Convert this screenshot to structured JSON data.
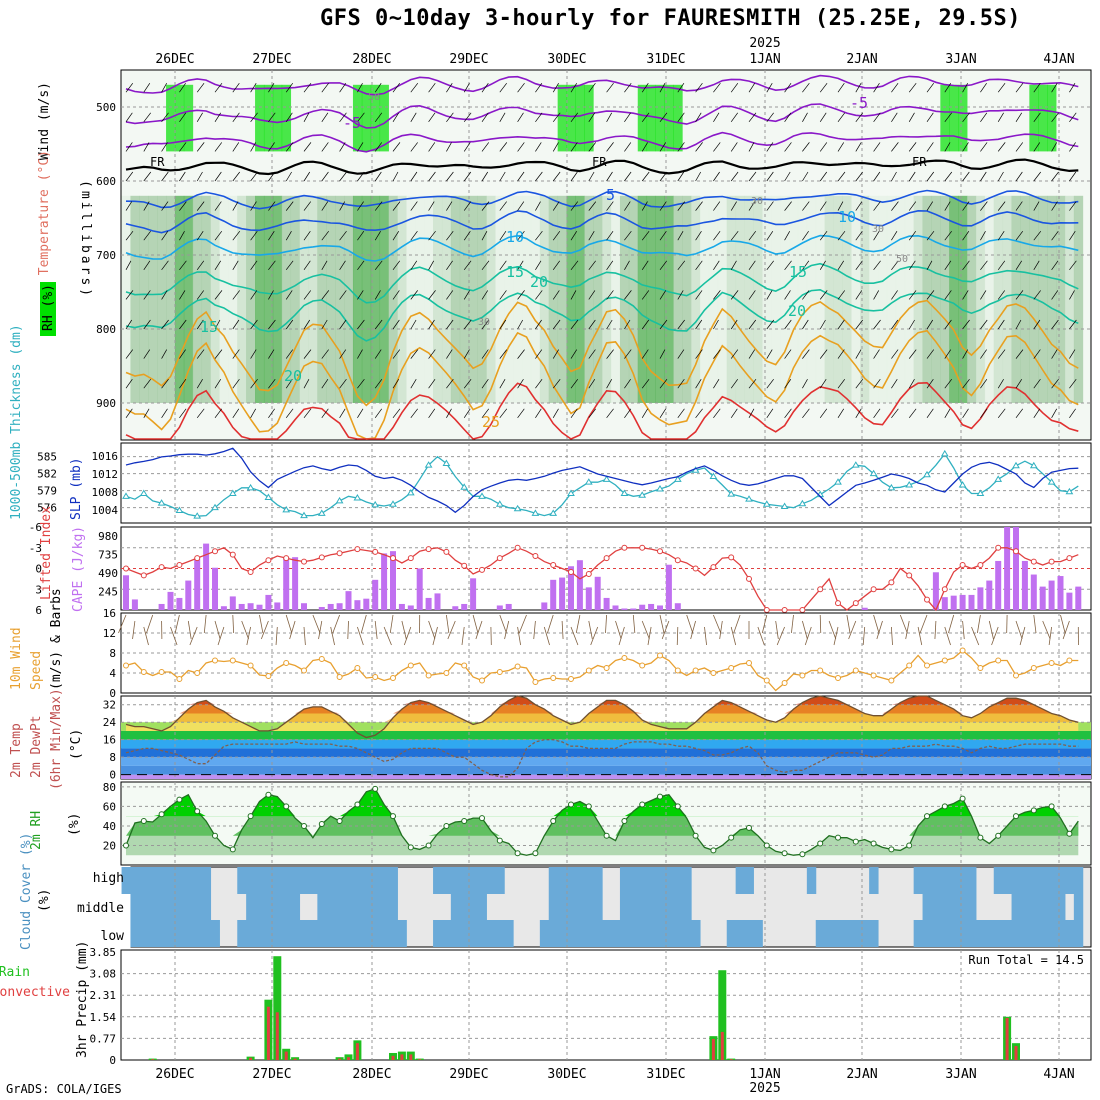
{
  "title": "GFS 0~10day 3-hourly for FAURESMITH (25.25E, 29.5S)",
  "footer": "GrADS: COLA/IGES",
  "colors": {
    "rh_light": "#e6f2e6",
    "rh_mid": "#a0c8a0",
    "rh_dark": "#4fae4f",
    "rh_bright": "#00e000",
    "temp_purple": "#8a18c8",
    "temp_blue": "#1a55e0",
    "temp_lightblue": "#18a8e8",
    "temp_teal": "#18c0a0",
    "temp_orange": "#e8a020",
    "temp_red": "#e03030",
    "thickness": "#30b0c0",
    "slp": "#1030c0",
    "lifted": "#e04040",
    "cape": "#c070f0",
    "wind": "#e8a030",
    "barb": "#806040",
    "rain_total": "#20c020",
    "rain_conv": "#e04040",
    "cloud": "#6aaad8",
    "cloud_gap": "#e8e8e8"
  },
  "chart_data": {
    "type": "meteogram",
    "dates_top": [
      "26DEC",
      "27DEC",
      "28DEC",
      "29DEC",
      "30DEC",
      "31DEC",
      "1JAN",
      "2JAN",
      "3JAN",
      "4JAN"
    ],
    "year_label": "2025",
    "dates_bottom": [
      "26DEC",
      "27DEC",
      "28DEC",
      "29DEC",
      "30DEC",
      "31DEC",
      "1JAN",
      "2JAN",
      "3JAN",
      "4JAN"
    ],
    "upper_air": {
      "ylabel": "(millibars)",
      "legend": [
        "Wind (m/s)",
        "Temperature (°C)",
        "RH (%)"
      ],
      "yticks": [
        "500",
        "600",
        "700",
        "800",
        "900"
      ],
      "ylim": [
        950,
        450
      ],
      "isotherm_labels": [
        "-5",
        "-5",
        "FR",
        "FR",
        "FR",
        "5",
        "10",
        "10",
        "15",
        "15",
        "20",
        "20",
        "25",
        "15",
        "20"
      ],
      "rh_labels": [
        "50",
        "30",
        "30",
        "50",
        "30"
      ]
    },
    "pressure_thickness": {
      "thickness_label": "1000-500mb Thickness (dm)",
      "thickness_ticks": [
        "585",
        "582",
        "579",
        "576"
      ],
      "slp_label": "SLP (mb)",
      "slp_ticks": [
        "1016",
        "1012",
        "1008",
        "1004"
      ],
      "thickness": [
        578.0,
        577.5,
        578.5,
        577.2,
        576.8,
        576.2,
        575.5,
        574.8,
        574.5,
        574.6,
        576.0,
        577.4,
        578.5,
        579.5,
        579.5,
        579.0,
        577.8,
        576.5,
        575.6,
        575.3,
        574.6,
        574.6,
        575.0,
        576.0,
        577.2,
        578.0,
        577.7,
        577.0,
        576.5,
        576.3,
        576.6,
        577.4,
        578.6,
        581.0,
        583.5,
        585.0,
        583.8,
        581.5,
        579.6,
        578.0,
        578.0,
        577.5,
        576.6,
        576.0,
        575.8,
        575.5,
        575.0,
        574.6,
        575.0,
        576.5,
        578.5,
        579.5,
        580.5,
        580.5,
        581.0,
        580.0,
        578.5,
        578.0,
        578.2,
        578.8,
        579.3,
        579.8,
        581.0,
        582.0,
        582.6,
        583.0,
        581.5,
        580.0,
        578.4,
        578.0,
        577.5,
        577.0,
        576.6,
        576.4,
        576.2,
        576.0,
        576.7,
        577.3,
        578.3,
        579.3,
        580.5,
        582.4,
        583.5,
        583.3,
        582.0,
        580.5,
        579.5,
        579.6,
        580.0,
        580.6,
        581.8,
        583.5,
        585.5,
        583.0,
        580.0,
        578.5,
        578.5,
        579.5,
        581.0,
        582.0,
        583.4,
        584.2,
        583.4,
        582.0,
        580.5,
        579.0,
        578.8,
        579.8
      ],
      "slp": [
        1014.0,
        1014.5,
        1014.8,
        1015.2,
        1015.8,
        1016.0,
        1016.3,
        1016.4,
        1016.4,
        1016.2,
        1016.5,
        1017.0,
        1017.7,
        1015.5,
        1012.5,
        1010.5,
        1009.0,
        1010.8,
        1011.7,
        1012.6,
        1013.4,
        1013.8,
        1013.2,
        1012.8,
        1013.5,
        1014.0,
        1013.8,
        1012.8,
        1011.5,
        1011.0,
        1011.3,
        1010.6,
        1009.5,
        1008.0,
        1006.8,
        1006.0,
        1005.0,
        1003.5,
        1005.0,
        1007.0,
        1008.5,
        1009.3,
        1010.0,
        1010.6,
        1010.8,
        1010.6,
        1011.0,
        1011.5,
        1012.2,
        1012.8,
        1013.2,
        1013.6,
        1012.8,
        1012.0,
        1011.5,
        1011.0,
        1010.5,
        1010.0,
        1009.6,
        1010.0,
        1010.5,
        1011.0,
        1011.4,
        1012.4,
        1013.2,
        1013.8,
        1012.8,
        1011.6,
        1010.6,
        1009.8,
        1009.5,
        1009.8,
        1010.4,
        1011.0,
        1011.6,
        1011.6,
        1011.0,
        1009.0,
        1007.0,
        1005.0,
        1006.5,
        1008.0,
        1009.5,
        1010.0,
        1010.6,
        1011.3,
        1012.0,
        1011.6,
        1011.0,
        1010.0,
        1009.5,
        1008.5,
        1008.0,
        1010.0,
        1012.0,
        1013.5,
        1014.3,
        1014.6,
        1014.0,
        1013.0,
        1012.0,
        1010.0,
        1009.0,
        1011.0,
        1012.4,
        1012.8,
        1013.2,
        1013.3
      ]
    },
    "lifted_cape": {
      "lifted_label": "Lifted Index",
      "lifted_ticks": [
        "-6",
        "-3",
        "0",
        "3",
        "6"
      ],
      "cape_label": "CAPE (J/kg)",
      "cape_ticks": [
        "980",
        "735",
        "490",
        "245"
      ],
      "lifted_index": [
        0.0,
        0.5,
        1.0,
        0.5,
        -0.2,
        0.0,
        -0.5,
        -1.0,
        -1.5,
        -2.0,
        -2.5,
        -3.0,
        -2.0,
        0.0,
        0.5,
        -0.5,
        -1.2,
        -1.8,
        -1.5,
        -1.2,
        -1.0,
        -1.2,
        -1.6,
        -2.0,
        -2.2,
        -2.5,
        -2.8,
        -2.6,
        -2.4,
        -2.0,
        -1.5,
        -0.8,
        -1.5,
        -2.5,
        -2.8,
        -3.0,
        -2.4,
        -1.2,
        -0.4,
        0.8,
        0.2,
        -0.5,
        -1.5,
        -2.2,
        -3.0,
        -2.5,
        -1.8,
        -1.0,
        -0.5,
        0.0,
        0.5,
        1.5,
        0.8,
        -0.5,
        -1.5,
        -2.5,
        -3.0,
        -3.0,
        -3.0,
        -2.8,
        -2.5,
        -2.0,
        -1.2,
        -0.8,
        0.0,
        1.0,
        -0.2,
        -1.5,
        -1.6,
        -0.5,
        1.5,
        4.0,
        6.0,
        6.0,
        6.0,
        6.0,
        6.0,
        4.5,
        3.0,
        1.5,
        5.0,
        6.0,
        5.0,
        4.0,
        3.0,
        3.0,
        2.0,
        0.0,
        1.0,
        2.5,
        4.5,
        6.0,
        3.0,
        0.5,
        -0.5,
        0.0,
        -0.5,
        -1.5,
        -3.0,
        -3.0,
        -2.5,
        -1.5,
        -1.0,
        -0.5,
        -1.0,
        -1.0,
        -1.5,
        -2.0
      ],
      "cape": [
        460,
        140,
        0,
        0,
        80,
        240,
        160,
        390,
        680,
        880,
        560,
        50,
        180,
        80,
        90,
        70,
        200,
        100,
        700,
        700,
        90,
        0,
        40,
        80,
        90,
        250,
        130,
        150,
        400,
        750,
        780,
        80,
        60,
        550,
        160,
        220,
        0,
        50,
        80,
        420,
        0,
        0,
        60,
        80,
        0,
        0,
        0,
        100,
        400,
        430,
        580,
        660,
        300,
        440,
        160,
        60,
        20,
        20,
        70,
        80,
        60,
        600,
        90,
        0,
        0,
        0,
        0,
        0,
        0,
        0,
        0,
        0,
        0,
        0,
        0,
        0,
        0,
        0,
        0,
        0,
        0,
        0,
        0,
        30,
        0,
        0,
        0,
        0,
        0,
        0,
        0,
        500,
        170,
        190,
        200,
        200,
        300,
        390,
        650,
        1100,
        1100,
        650,
        470,
        310,
        390,
        450,
        230,
        310
      ]
    },
    "wind": {
      "ylabel": "10m Wind Speed (m/s) & Barbs",
      "yticks": [
        "16",
        "12",
        "8",
        "4",
        "0"
      ],
      "speed": [
        5.5,
        6.0,
        4.2,
        3.5,
        4.2,
        4.2,
        2.8,
        4.5,
        4.0,
        6.0,
        6.5,
        6.3,
        6.5,
        6.0,
        5.5,
        3.6,
        3.4,
        5.0,
        6.0,
        5.5,
        4.5,
        6.5,
        6.8,
        6.0,
        3.2,
        3.8,
        5.0,
        3.0,
        3.2,
        2.5,
        3.0,
        4.5,
        5.5,
        6.0,
        3.5,
        3.8,
        4.0,
        6.0,
        5.5,
        3.2,
        2.5,
        4.0,
        4.2,
        4.5,
        5.3,
        5.0,
        2.2,
        2.8,
        3.0,
        2.8,
        2.8,
        3.2,
        4.5,
        5.5,
        5.0,
        6.5,
        7.0,
        6.5,
        5.5,
        6.0,
        7.5,
        6.5,
        4.5,
        3.5,
        4.5,
        5.0,
        4.0,
        4.5,
        5.0,
        5.8,
        6.0,
        3.5,
        2.5,
        0.5,
        2.0,
        3.8,
        3.5,
        4.5,
        4.5,
        3.5,
        3.0,
        3.5,
        4.5,
        4.0,
        3.5,
        3.0,
        2.5,
        4.0,
        5.5,
        7.5,
        5.5,
        6.0,
        6.5,
        7.0,
        8.5,
        7.0,
        5.0,
        6.0,
        6.5,
        6.5,
        3.5,
        4.0,
        5.0,
        5.5,
        6.0,
        5.5,
        6.5,
        6.5
      ]
    },
    "temperature": {
      "ylabel": "2m Temp 2m DewPt (6hr Min/Max) (°C)",
      "yticks": [
        "32",
        "24",
        "16",
        "8",
        "0"
      ],
      "temp": [
        23,
        22,
        22,
        21,
        20,
        22,
        26,
        30,
        33,
        34,
        31,
        29,
        26,
        24,
        22,
        20,
        20,
        21,
        24,
        27,
        30,
        31,
        31,
        29,
        27,
        23,
        19,
        17,
        18,
        21,
        26,
        30,
        33,
        34,
        33,
        31,
        29,
        27,
        25,
        23,
        24,
        27,
        31,
        34,
        36,
        35,
        32,
        30,
        27,
        25,
        23,
        24,
        28,
        31,
        34,
        34,
        32,
        29,
        25,
        23,
        22,
        21,
        21,
        21,
        24,
        28,
        31,
        34,
        33,
        31,
        29,
        27,
        25,
        24,
        26,
        30,
        33,
        35,
        36,
        35,
        34,
        32,
        30,
        28,
        27,
        27,
        30,
        33,
        35,
        36,
        36,
        34,
        32,
        30,
        27,
        26,
        28,
        31,
        33,
        35,
        35,
        34,
        32,
        30,
        28,
        27,
        25,
        24
      ],
      "dewpoint": [
        10,
        11,
        12,
        12,
        11,
        10,
        9,
        7,
        5,
        5,
        9,
        13,
        14,
        14,
        14,
        14,
        14,
        14,
        14,
        15,
        14,
        14,
        14,
        14,
        13,
        13,
        12,
        10,
        8,
        6,
        7,
        10,
        12,
        12,
        12,
        12,
        10,
        8,
        8,
        5,
        2,
        0,
        -1,
        -1,
        3,
        12,
        15,
        16,
        16,
        15,
        13,
        13,
        12,
        12,
        12,
        12,
        14,
        15,
        15,
        15,
        14,
        14,
        13,
        13,
        12,
        11,
        9,
        9,
        10,
        12,
        13,
        10,
        4,
        2,
        1,
        2,
        2,
        4,
        6,
        8,
        10,
        10,
        10,
        9,
        8,
        9,
        12,
        12,
        13,
        13,
        13,
        14,
        13,
        13,
        12,
        10,
        12,
        13,
        12,
        12,
        13,
        14,
        14,
        14,
        14,
        14,
        13,
        13
      ]
    },
    "rh": {
      "ylabel": "2m RH (%)",
      "yticks": [
        "80",
        "60",
        "40",
        "20"
      ],
      "values": [
        20,
        43,
        45,
        44,
        52,
        60,
        67,
        72,
        55,
        45,
        30,
        20,
        16,
        36,
        50,
        65,
        72,
        70,
        60,
        48,
        40,
        28,
        42,
        50,
        45,
        55,
        62,
        75,
        78,
        62,
        50,
        30,
        18,
        16,
        20,
        32,
        40,
        44,
        45,
        48,
        48,
        35,
        25,
        22,
        12,
        10,
        12,
        30,
        45,
        56,
        62,
        65,
        60,
        45,
        30,
        25,
        45,
        55,
        62,
        66,
        70,
        72,
        60,
        48,
        30,
        18,
        15,
        20,
        28,
        36,
        38,
        30,
        20,
        14,
        12,
        10,
        11,
        16,
        22,
        30,
        28,
        28,
        24,
        26,
        22,
        18,
        16,
        15,
        20,
        40,
        50,
        55,
        60,
        63,
        68,
        50,
        28,
        22,
        30,
        40,
        50,
        54,
        56,
        59,
        60,
        48,
        32,
        45
      ]
    },
    "cloud": {
      "ylabel": "Cloud Cover (%)",
      "levels": [
        "high",
        "middle",
        "low"
      ]
    },
    "precip": {
      "ylabel": "3hr Precip (mm)",
      "legend": [
        "Total / Rain",
        "Convective"
      ],
      "yticks": [
        "3.85",
        "3.08",
        "2.31",
        "1.54",
        "0.77",
        "0"
      ],
      "run_total_label": "Run Total =  14.5",
      "total": [
        0,
        0,
        0,
        0.05,
        0,
        0,
        0,
        0,
        0,
        0,
        0,
        0,
        0,
        0,
        0.12,
        0,
        2.15,
        3.7,
        0.4,
        0.1,
        0,
        0,
        0,
        0,
        0.1,
        0.2,
        0.7,
        0,
        0,
        0,
        0.25,
        0.3,
        0.3,
        0.05,
        0,
        0,
        0,
        0,
        0,
        0,
        0,
        0,
        0,
        0,
        0,
        0,
        0,
        0,
        0,
        0,
        0,
        0,
        0,
        0,
        0,
        0,
        0,
        0,
        0,
        0,
        0,
        0,
        0,
        0,
        0,
        0,
        0.85,
        3.2,
        0.05,
        0,
        0,
        0,
        0,
        0,
        0,
        0,
        0,
        0,
        0,
        0,
        0,
        0,
        0,
        0,
        0,
        0,
        0,
        0,
        0,
        0,
        0,
        0,
        0,
        0,
        0,
        0,
        0,
        0,
        0,
        1.54,
        0.6,
        0,
        0,
        0,
        0,
        0,
        0,
        0,
        0,
        0,
        0.15,
        0.55,
        0
      ],
      "convective": [
        0,
        0,
        0,
        0.03,
        0,
        0,
        0,
        0,
        0,
        0,
        0,
        0,
        0,
        0,
        0.08,
        0,
        1.9,
        1.7,
        0.3,
        0.05,
        0,
        0,
        0,
        0,
        0.05,
        0.1,
        0.6,
        0,
        0,
        0,
        0.15,
        0.2,
        0.2,
        0.03,
        0,
        0,
        0,
        0,
        0,
        0,
        0,
        0,
        0,
        0,
        0,
        0,
        0,
        0,
        0,
        0,
        0,
        0,
        0,
        0,
        0,
        0,
        0,
        0,
        0,
        0,
        0,
        0,
        0,
        0,
        0,
        0,
        0.75,
        1.0,
        0.03,
        0,
        0,
        0,
        0,
        0,
        0,
        0,
        0,
        0,
        0,
        0,
        0,
        0,
        0,
        0,
        0,
        0,
        0,
        0,
        0,
        0,
        0,
        0,
        0,
        0,
        0,
        0,
        0,
        0,
        0,
        1.5,
        0.5,
        0,
        0,
        0,
        0,
        0,
        0,
        0,
        0,
        0,
        0.1,
        0.45,
        0
      ]
    }
  }
}
